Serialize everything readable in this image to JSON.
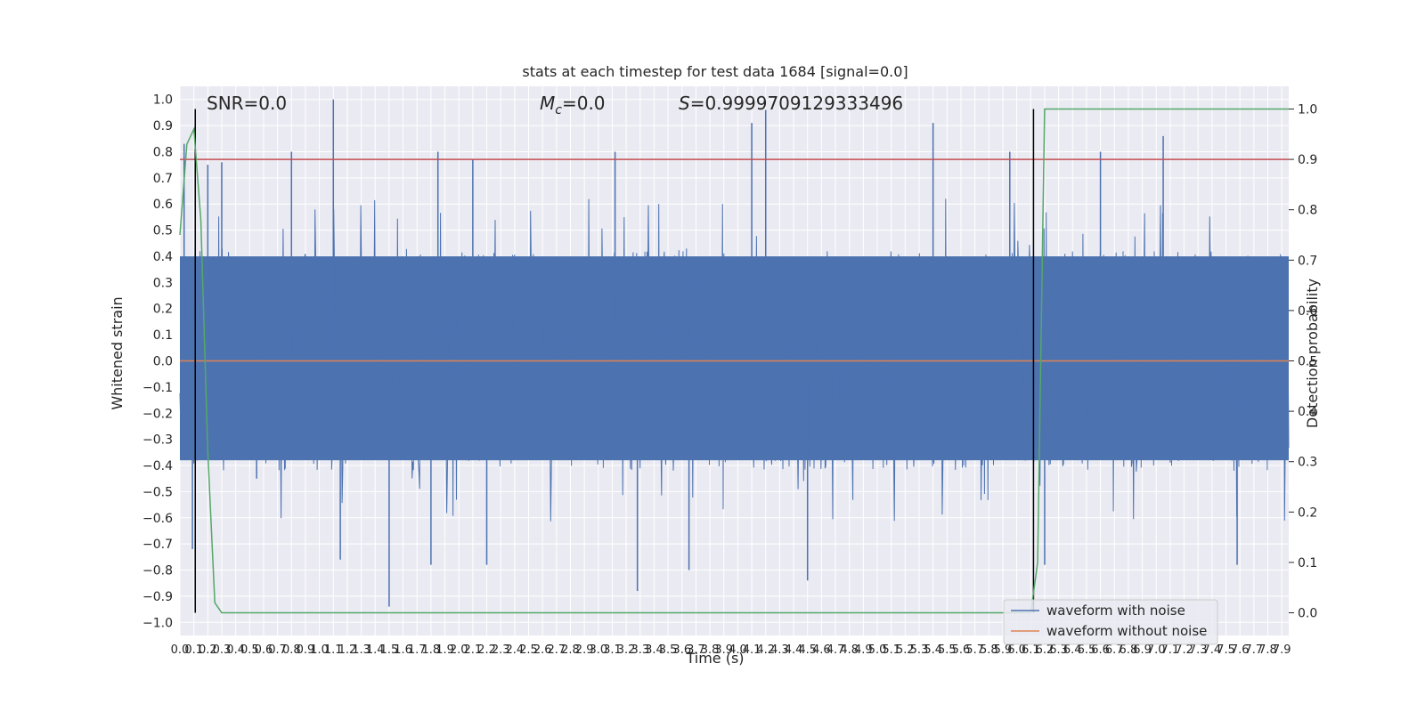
{
  "chart_data": {
    "type": "line",
    "title": "stats at each timestep for test data 1684 [signal=0.0]",
    "xlabel": "Time (s)",
    "ylabel": "Whitened strain",
    "y2label": "Detection probability",
    "xlim": [
      0.0,
      7.95
    ],
    "ylim": [
      -1.05,
      1.05
    ],
    "y2lim": [
      -0.045,
      1.045
    ],
    "x_ticks": [
      0.0,
      0.1,
      0.2,
      0.3,
      0.4,
      0.5,
      0.6,
      0.7,
      0.8,
      0.9,
      1.0,
      1.1,
      1.2,
      1.3,
      1.4,
      1.5,
      1.6,
      1.7,
      1.8,
      1.9,
      2.0,
      2.1,
      2.2,
      2.3,
      2.4,
      2.5,
      2.6,
      2.7,
      2.8,
      2.9,
      3.0,
      3.1,
      3.2,
      3.3,
      3.4,
      3.5,
      3.6,
      3.7,
      3.8,
      3.9,
      4.0,
      4.1,
      4.2,
      4.3,
      4.4,
      4.5,
      4.6,
      4.7,
      4.8,
      4.9,
      5.0,
      5.1,
      5.2,
      5.3,
      5.4,
      5.5,
      5.6,
      5.7,
      5.8,
      5.9,
      6.0,
      6.1,
      6.2,
      6.3,
      6.4,
      6.5,
      6.6,
      6.7,
      6.8,
      6.9,
      7.0,
      7.1,
      7.2,
      7.3,
      7.4,
      7.5,
      7.6,
      7.7,
      7.8,
      7.9
    ],
    "y_ticks": [
      -1.0,
      -0.9,
      -0.8,
      -0.7,
      -0.6,
      -0.5,
      -0.4,
      -0.3,
      -0.2,
      -0.1,
      0.0,
      0.1,
      0.2,
      0.3,
      0.4,
      0.5,
      0.6,
      0.7,
      0.8,
      0.9,
      1.0
    ],
    "y2_ticks": [
      0.0,
      0.1,
      0.2,
      0.3,
      0.4,
      0.5,
      0.6,
      0.7,
      0.8,
      0.9,
      1.0
    ],
    "annotations": {
      "snr": "SNR=0.0",
      "mc_symbol": "M",
      "mc_sub": "c",
      "mc_value": "=0.0",
      "s_symbol": "S",
      "s_value": "=0.9999709129333496"
    },
    "grid": true,
    "legend_placement": "lower-right",
    "series": [
      {
        "name": "waveform with noise",
        "axis": "left",
        "color": "#4c72b0",
        "style": "dense noise trace, mostly within [-0.45, 0.45]",
        "peaks": [
          [
            0.03,
            0.83
          ],
          [
            0.09,
            -0.72
          ],
          [
            0.2,
            0.75
          ],
          [
            0.3,
            0.76
          ],
          [
            0.55,
            -0.45
          ],
          [
            0.8,
            0.8
          ],
          [
            1.1,
            1.0
          ],
          [
            1.15,
            -0.76
          ],
          [
            1.5,
            -0.94
          ],
          [
            1.85,
            0.8
          ],
          [
            1.8,
            -0.78
          ],
          [
            2.1,
            0.77
          ],
          [
            2.2,
            -0.78
          ],
          [
            3.12,
            0.8
          ],
          [
            3.28,
            -0.88
          ],
          [
            3.65,
            -0.8
          ],
          [
            4.1,
            0.91
          ],
          [
            4.2,
            0.96
          ],
          [
            4.5,
            -0.84
          ],
          [
            5.4,
            0.91
          ],
          [
            5.95,
            0.8
          ],
          [
            6.2,
            -0.78
          ],
          [
            6.6,
            0.8
          ],
          [
            7.05,
            0.86
          ],
          [
            7.58,
            -0.78
          ]
        ],
        "band": [
          -0.38,
          0.4
        ]
      },
      {
        "name": "waveform without noise",
        "axis": "left",
        "color": "#dd8452",
        "x": [
          0.0,
          7.95
        ],
        "y": [
          0.0,
          0.0
        ]
      },
      {
        "name": "",
        "axis": "right",
        "color": "#55a868",
        "x": [
          0.0,
          0.05,
          0.1,
          0.15,
          0.2,
          0.25,
          0.3,
          6.1,
          6.15,
          6.2,
          7.95
        ],
        "y": [
          0.75,
          0.93,
          0.96,
          0.78,
          0.32,
          0.02,
          0.0,
          0.0,
          0.1,
          1.0,
          1.0
        ]
      }
    ],
    "threshold": {
      "axis": "right",
      "value": 0.9,
      "color": "#c44e52"
    },
    "vertical_markers": [
      0.11,
      6.12
    ]
  }
}
